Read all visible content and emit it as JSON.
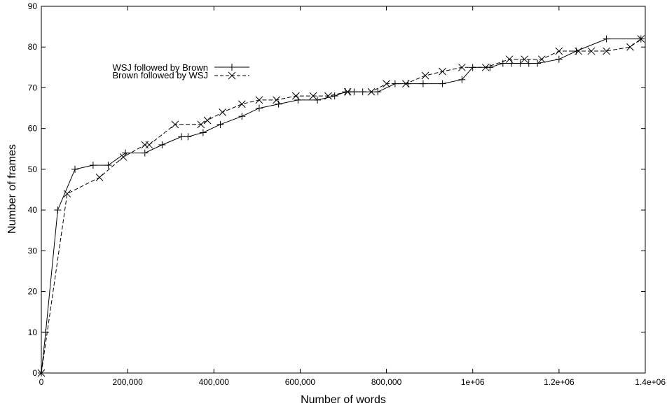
{
  "chart_data": {
    "type": "line",
    "title": "",
    "xlabel": "Number of words",
    "ylabel": "Number of frames",
    "xlim": [
      0,
      1400000
    ],
    "ylim": [
      0,
      90
    ],
    "x_ticks": [
      0,
      200000,
      400000,
      600000,
      800000,
      1000000,
      1200000,
      1400000
    ],
    "x_tick_labels": [
      "0",
      "200,000",
      "400,000",
      "600,000",
      "800,000",
      "1e+06",
      "1.2e+06",
      "1.4e+06"
    ],
    "y_ticks": [
      0,
      10,
      20,
      30,
      40,
      50,
      60,
      70,
      80,
      90
    ],
    "y_tick_labels": [
      "0",
      "10",
      "20",
      "30",
      "40",
      "50",
      "60",
      "70",
      "80",
      "90"
    ],
    "grid": false,
    "legend_position": "upper-left",
    "series": [
      {
        "name": "WSJ followed by Brown",
        "line_style": "solid",
        "marker": "plus",
        "color": "#000000",
        "x": [
          0,
          10000,
          38000,
          78000,
          120000,
          155000,
          195000,
          240000,
          280000,
          325000,
          340000,
          375000,
          415000,
          465000,
          505000,
          550000,
          595000,
          640000,
          680000,
          705000,
          715000,
          725000,
          745000,
          780000,
          820000,
          850000,
          885000,
          930000,
          975000,
          1000000,
          1040000,
          1070000,
          1090000,
          1110000,
          1130000,
          1150000,
          1200000,
          1240000,
          1310000,
          1390000
        ],
        "y": [
          0,
          10,
          40,
          50,
          51,
          51,
          54,
          54,
          56,
          58,
          58,
          59,
          61,
          63,
          65,
          66,
          67,
          67,
          68,
          69,
          69,
          69,
          69,
          69,
          71,
          71,
          71,
          71,
          72,
          75,
          75,
          76,
          76,
          76,
          76,
          76,
          77,
          79,
          82,
          82
        ]
      },
      {
        "name": "Brown followed by WSJ",
        "line_style": "dashed",
        "marker": "cross",
        "color": "#000000",
        "x": [
          0,
          60000,
          135000,
          190000,
          240000,
          250000,
          310000,
          370000,
          385000,
          420000,
          465000,
          505000,
          545000,
          590000,
          630000,
          665000,
          710000,
          765000,
          800000,
          845000,
          890000,
          930000,
          975000,
          1030000,
          1085000,
          1120000,
          1160000,
          1200000,
          1245000,
          1275000,
          1310000,
          1365000,
          1390000
        ],
        "y": [
          0,
          44,
          48,
          53,
          56,
          56,
          61,
          61,
          62,
          64,
          66,
          67,
          67,
          68,
          68,
          68,
          69,
          69,
          71,
          71,
          73,
          74,
          75,
          75,
          77,
          77,
          77,
          79,
          79,
          79,
          79,
          80,
          82
        ]
      }
    ]
  }
}
